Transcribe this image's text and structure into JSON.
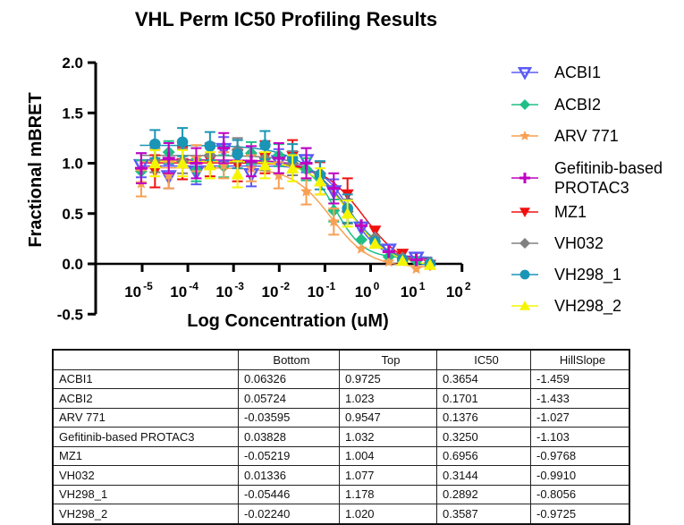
{
  "chart_data": {
    "type": "scatter",
    "title": "VHL Perm IC50 Profiling Results",
    "xlabel": "Log Concentration (uM)",
    "ylabel": "Fractional mBRET",
    "x_scale": "log10",
    "xlim": [
      1e-06,
      100
    ],
    "ylim": [
      -0.5,
      2.0
    ],
    "yticks": [
      "-0.5",
      "0.0",
      "0.5",
      "1.0",
      "1.5",
      "2.0"
    ],
    "xticks": [
      {
        "base": "10",
        "exp": "-5"
      },
      {
        "base": "10",
        "exp": "-4"
      },
      {
        "base": "10",
        "exp": "-3"
      },
      {
        "base": "10",
        "exp": "-2"
      },
      {
        "base": "10",
        "exp": "-1"
      },
      {
        "base": "10",
        "exp": "0"
      },
      {
        "base": "10",
        "exp": "1"
      },
      {
        "base": "10",
        "exp": "2"
      }
    ],
    "legend_position": "right",
    "grid": false,
    "series": [
      {
        "name": "ACBI1",
        "color": "#5b5bf5",
        "marker": "triangle-down-open",
        "x_top_uM": 10,
        "dilution": 4,
        "y": [
          0.98,
          0.87,
          0.91,
          1.14,
          0.89,
          1.02,
          1.03,
          0.72,
          0.36,
          0.14,
          0.06
        ],
        "sd": 0.12,
        "fit": {
          "bottom": 0.06326,
          "top": 0.9725,
          "ic50": 0.3654,
          "hill": -1.459
        }
      },
      {
        "name": "ACBI2",
        "color": "#1fbf86",
        "marker": "cross-filled",
        "x_top_uM": 10,
        "dilution": 4,
        "y": [
          0.92,
          1.11,
          0.93,
          0.97,
          1.1,
          1.08,
          0.94,
          0.53,
          0.24,
          0.07,
          0.03
        ],
        "sd": 0.11,
        "fit": {
          "bottom": 0.05724,
          "top": 1.023,
          "ic50": 0.1701,
          "hill": -1.433
        }
      },
      {
        "name": "ARV 771",
        "color": "#f7a053",
        "marker": "star",
        "x_top_uM": 10,
        "dilution": 4,
        "y": [
          0.8,
          0.88,
          1.05,
          0.98,
          0.95,
          0.88,
          0.72,
          0.42,
          0.15,
          0.02,
          -0.05
        ],
        "sd": 0.13,
        "fit": {
          "bottom": -0.03595,
          "top": 0.9547,
          "ic50": 0.1376,
          "hill": -1.027
        }
      },
      {
        "name": "Gefitinib-based PROTAC3",
        "color": "#c000c0",
        "marker": "plus",
        "x_top_uM": 10,
        "dilution": 4,
        "y": [
          0.95,
          1.05,
          1.0,
          1.15,
          1.02,
          1.05,
          1.0,
          0.75,
          0.38,
          0.12,
          0.04
        ],
        "sd": 0.15,
        "fit": {
          "bottom": 0.03828,
          "top": 1.032,
          "ic50": 0.325,
          "hill": -1.103
        }
      },
      {
        "name": "MZ1",
        "color": "#f01010",
        "marker": "triangle-down",
        "x_top_uM": 20,
        "dilution": 4,
        "y": [
          0.92,
          1.0,
          1.03,
          0.98,
          1.06,
          1.07,
          0.85,
          0.69,
          0.33,
          0.1,
          -0.01
        ],
        "sd": 0.16,
        "fit": {
          "bottom": -0.05219,
          "top": 1.004,
          "ic50": 0.6956,
          "hill": -0.9768
        }
      },
      {
        "name": "VH032",
        "color": "#808080",
        "marker": "diamond",
        "x_top_uM": 20,
        "dilution": 4,
        "y": [
          1.03,
          1.02,
          1.08,
          1.13,
          1.05,
          1.0,
          0.9,
          0.52,
          0.26,
          0.06,
          0.01
        ],
        "sd": 0.12,
        "fit": {
          "bottom": 0.01336,
          "top": 1.077,
          "ic50": 0.3144,
          "hill": -0.991
        }
      },
      {
        "name": "VH298_1",
        "color": "#1a95b5",
        "marker": "circle",
        "x_top_uM": 20,
        "dilution": 4,
        "y": [
          1.19,
          1.21,
          1.17,
          1.09,
          1.18,
          1.05,
          0.88,
          0.55,
          0.22,
          0.04,
          0.0
        ],
        "sd": 0.14,
        "fit": {
          "bottom": -0.05446,
          "top": 1.178,
          "ic50": 0.2892,
          "hill": -0.8056
        }
      },
      {
        "name": "VH298_2",
        "color": "#f5f500",
        "marker": "triangle-up",
        "x_top_uM": 20,
        "dilution": 4,
        "y": [
          1.0,
          1.0,
          0.98,
          0.89,
          0.98,
          0.95,
          0.82,
          0.5,
          0.2,
          0.03,
          -0.01
        ],
        "sd": 0.13,
        "fit": {
          "bottom": -0.0224,
          "top": 1.02,
          "ic50": 0.3587,
          "hill": -0.9725
        }
      }
    ]
  },
  "legend": {
    "items": [
      "ACBI1",
      "ACBI2",
      "ARV 771",
      "Gefitinib-based",
      "PROTAC3",
      "MZ1",
      "VH032",
      "VH298_1",
      "VH298_2"
    ]
  },
  "table": {
    "headers": [
      "",
      "Bottom",
      "Top",
      "IC50",
      "HillSlope"
    ],
    "rows": [
      [
        "ACBI1",
        "0.06326",
        "0.9725",
        "0.3654",
        "-1.459"
      ],
      [
        "ACBI2",
        "0.05724",
        "1.023",
        "0.1701",
        "-1.433"
      ],
      [
        "ARV 771",
        "-0.03595",
        "0.9547",
        "0.1376",
        "-1.027"
      ],
      [
        "Gefitinib-based PROTAC3",
        "0.03828",
        "1.032",
        "0.3250",
        "-1.103"
      ],
      [
        "MZ1",
        "-0.05219",
        "1.004",
        "0.6956",
        "-0.9768"
      ],
      [
        "VH032",
        "0.01336",
        "1.077",
        "0.3144",
        "-0.9910"
      ],
      [
        "VH298_1",
        "-0.05446",
        "1.178",
        "0.2892",
        "-0.8056"
      ],
      [
        "VH298_2",
        "-0.02240",
        "1.020",
        "0.3587",
        "-0.9725"
      ]
    ]
  }
}
